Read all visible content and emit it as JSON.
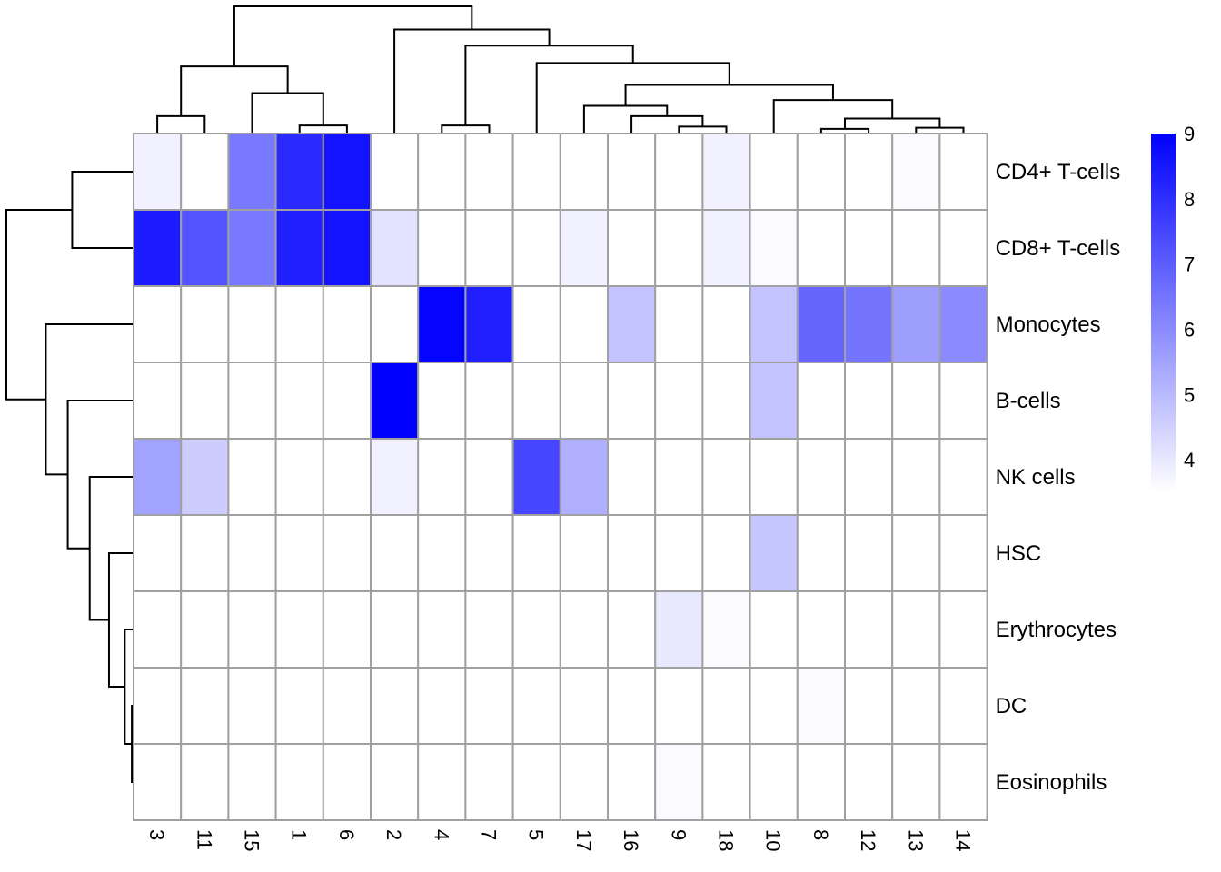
{
  "chart_data": {
    "type": "heatmap",
    "title": "",
    "xlabel": "",
    "ylabel": "",
    "rows": [
      "CD4+ T-cells",
      "CD8+ T-cells",
      "Monocytes",
      "B-cells",
      "NK cells",
      "HSC",
      "Erythrocytes",
      "DC",
      "Eosinophils"
    ],
    "columns": [
      "3",
      "11",
      "15",
      "1",
      "6",
      "2",
      "4",
      "7",
      "5",
      "17",
      "16",
      "9",
      "18",
      "10",
      "8",
      "12",
      "13",
      "14"
    ],
    "values": [
      [
        3.8,
        3.5,
        6.4,
        8.1,
        8.6,
        3.5,
        3.5,
        3.5,
        3.5,
        3.5,
        3.5,
        3.5,
        3.8,
        3.5,
        3.5,
        3.5,
        3.6,
        3.5
      ],
      [
        8.4,
        7.2,
        6.4,
        8.3,
        8.6,
        4.1,
        3.5,
        3.5,
        3.5,
        3.8,
        3.5,
        3.5,
        3.8,
        3.6,
        3.5,
        3.5,
        3.5,
        3.5
      ],
      [
        3.5,
        3.5,
        3.5,
        3.5,
        3.5,
        3.5,
        8.9,
        8.3,
        3.5,
        3.5,
        4.8,
        3.5,
        3.5,
        4.8,
        6.8,
        6.5,
        5.6,
        6.0
      ],
      [
        3.5,
        3.5,
        3.5,
        3.5,
        3.5,
        9.0,
        3.5,
        3.5,
        3.5,
        3.5,
        3.5,
        3.5,
        3.5,
        4.8,
        3.5,
        3.5,
        3.5,
        3.5
      ],
      [
        5.5,
        4.6,
        3.5,
        3.5,
        3.5,
        3.8,
        3.5,
        3.5,
        7.5,
        5.2,
        3.5,
        3.5,
        3.5,
        3.5,
        3.5,
        3.5,
        3.5,
        3.5
      ],
      [
        3.5,
        3.5,
        3.5,
        3.5,
        3.5,
        3.5,
        3.5,
        3.5,
        3.5,
        3.5,
        3.5,
        3.5,
        3.5,
        4.7,
        3.5,
        3.5,
        3.5,
        3.5
      ],
      [
        3.5,
        3.5,
        3.5,
        3.5,
        3.5,
        3.5,
        3.5,
        3.5,
        3.5,
        3.5,
        3.5,
        4.0,
        3.6,
        3.5,
        3.5,
        3.5,
        3.5,
        3.5
      ],
      [
        3.5,
        3.5,
        3.5,
        3.5,
        3.5,
        3.5,
        3.5,
        3.5,
        3.5,
        3.5,
        3.5,
        3.5,
        3.5,
        3.5,
        3.6,
        3.5,
        3.5,
        3.5
      ],
      [
        3.5,
        3.5,
        3.5,
        3.5,
        3.5,
        3.5,
        3.5,
        3.5,
        3.5,
        3.5,
        3.5,
        3.6,
        3.5,
        3.5,
        3.5,
        3.5,
        3.5,
        3.5
      ]
    ],
    "color_scale": {
      "min": 3.5,
      "max": 9,
      "low_color": "#FFFFFF",
      "high_color": "#0000FF"
    },
    "legend": {
      "ticks": [
        "4",
        "5",
        "6",
        "7",
        "8",
        "9"
      ],
      "placement": "right"
    },
    "cell_border_color": "#A0A0A0",
    "row_dendrogram": {
      "merges": [
        {
          "a": "DC",
          "b": "Eosinophils",
          "height": 0.02
        },
        {
          "a": "Erythrocytes",
          "b": "m1",
          "height": 0.1
        },
        {
          "a": "HSC",
          "b": "m2",
          "height": 0.28
        },
        {
          "a": "NK cells",
          "b": "m3",
          "height": 0.5
        },
        {
          "a": "B-cells",
          "b": "m4",
          "height": 0.75
        },
        {
          "a": "Monocytes",
          "b": "m5",
          "height": 1.0
        },
        {
          "a": "CD4+ T-cells",
          "b": "CD8+ T-cells",
          "height": 0.7
        },
        {
          "a": "m7",
          "b": "m6",
          "height": 1.45
        }
      ]
    },
    "col_dendrogram": {
      "merges": [
        {
          "a": "3",
          "b": "11",
          "height": 0.15
        },
        {
          "a": "1",
          "b": "6",
          "height": 0.07
        },
        {
          "a": "15",
          "b": "m2",
          "height": 0.35
        },
        {
          "a": "m1",
          "b": "m3",
          "height": 0.58
        },
        {
          "a": "4",
          "b": "7",
          "height": 0.07
        },
        {
          "a": "9",
          "b": "18",
          "height": 0.06
        },
        {
          "a": "16",
          "b": "m6",
          "height": 0.15
        },
        {
          "a": "17",
          "b": "m7",
          "height": 0.24
        },
        {
          "a": "8",
          "b": "12",
          "height": 0.04
        },
        {
          "a": "13",
          "b": "14",
          "height": 0.05
        },
        {
          "a": "m9",
          "b": "m10",
          "height": 0.13
        },
        {
          "a": "10",
          "b": "m11",
          "height": 0.29
        },
        {
          "a": "m8",
          "b": "m12",
          "height": 0.42
        },
        {
          "a": "5",
          "b": "m13",
          "height": 0.61
        },
        {
          "a": "m5",
          "b": "m14",
          "height": 0.76
        },
        {
          "a": "2",
          "b": "m15",
          "height": 0.9
        },
        {
          "a": "m4",
          "b": "m16",
          "height": 1.1
        }
      ]
    }
  }
}
